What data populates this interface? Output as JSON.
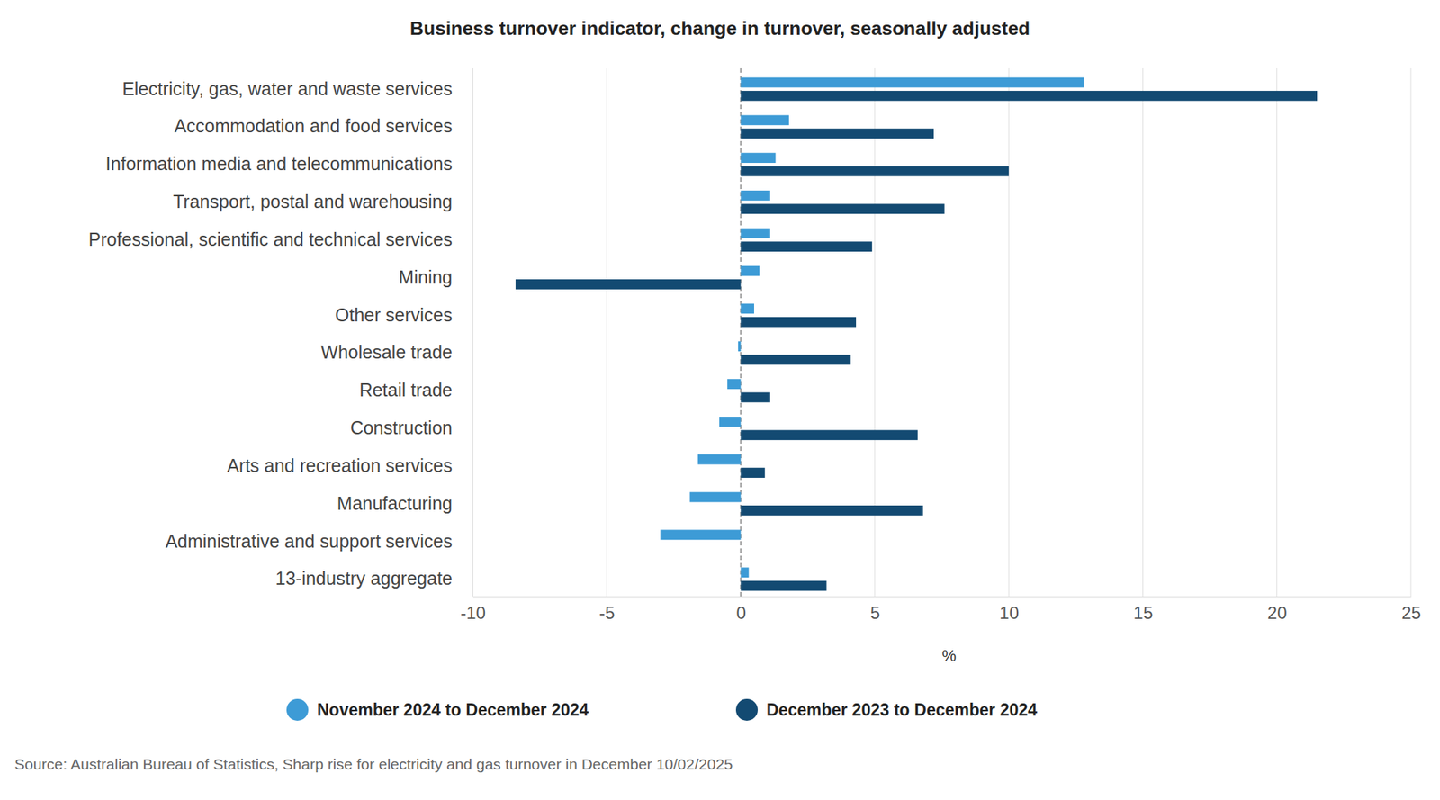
{
  "chart_data": {
    "type": "bar",
    "orientation": "horizontal",
    "title": "Business turnover indicator, change in turnover, seasonally adjusted",
    "categories": [
      "Electricity, gas, water and waste services",
      "Accommodation and food services",
      "Information media and telecommunications",
      "Transport, postal and warehousing",
      "Professional, scientific and technical services",
      "Mining",
      "Other services",
      "Wholesale trade",
      "Retail trade",
      "Construction",
      "Arts and recreation services",
      "Manufacturing",
      "Administrative and support services",
      "13-industry aggregate"
    ],
    "series": [
      {
        "name": "November 2024 to December 2024",
        "color": "#3d9bd6",
        "values": [
          12.8,
          1.8,
          1.3,
          1.1,
          1.1,
          0.7,
          0.5,
          -0.1,
          -0.5,
          -0.8,
          -1.6,
          -1.9,
          -3.0,
          0.3
        ]
      },
      {
        "name": "December 2023 to December 2024",
        "color": "#134a72",
        "values": [
          21.5,
          7.2,
          10.0,
          7.6,
          4.9,
          -8.4,
          4.3,
          4.1,
          1.1,
          6.6,
          0.9,
          6.8,
          0.0,
          3.2
        ]
      }
    ],
    "xlim": [
      -10,
      25
    ],
    "xticks": [
      -10,
      -5,
      0,
      5,
      10,
      15,
      20,
      25
    ],
    "x_label": "%",
    "grid": true,
    "legend": "bottom",
    "source": "Source: Australian Bureau of Statistics, Sharp rise for electricity and gas turnover in December 10/02/2025"
  }
}
